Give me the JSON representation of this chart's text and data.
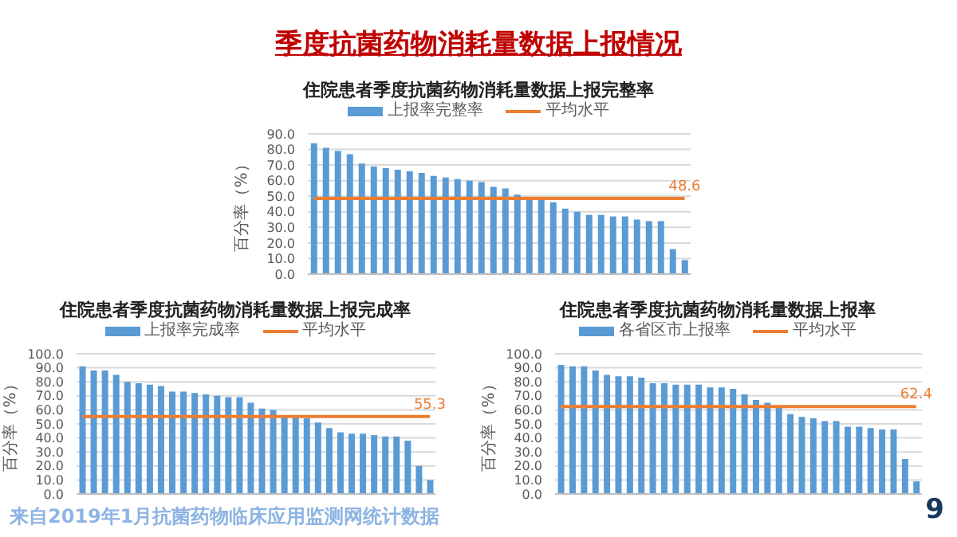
{
  "chart_data": [
    {
      "type": "bar",
      "title": "住院患者季度抗菌药物消耗量数据上报完整率",
      "ylabel": "百分率（%）",
      "annotations": [
        "季度抗菌药物消耗量数据上报情况",
        "来自2019年1月抗菌药物临床应用监测网统计数据",
        "9"
      ],
      "categories": [
        null,
        null,
        null,
        null,
        null,
        null,
        null,
        null,
        null,
        null,
        null,
        null,
        null,
        null,
        null,
        null,
        null,
        null,
        null,
        null,
        null,
        null,
        null,
        null,
        null,
        null,
        null,
        null,
        null,
        null,
        null,
        null
      ],
      "series": [
        {
          "name": "上报率完整率",
          "color": "#5b9bd5",
          "values": [
            84,
            81,
            79,
            77,
            71,
            69,
            68,
            67,
            66,
            65,
            63,
            62,
            61,
            60,
            59,
            56,
            55,
            51,
            48,
            48,
            46,
            42,
            40,
            38,
            38,
            37,
            37,
            35,
            34,
            34,
            16,
            9
          ]
        },
        {
          "type": "line",
          "name": "平均水平",
          "color": "#ed7d31",
          "values": [
            48.6,
            48.6,
            48.6,
            48.6,
            48.6,
            48.6,
            48.6,
            48.6,
            48.6,
            48.6,
            48.6,
            48.6,
            48.6,
            48.6,
            48.6,
            48.6,
            48.6,
            48.6,
            48.6,
            48.6,
            48.6,
            48.6,
            48.6,
            48.6,
            48.6,
            48.6,
            48.6,
            48.6,
            48.6,
            48.6,
            48.6,
            48.6
          ],
          "value_labels": [
            null,
            null,
            null,
            null,
            null,
            null,
            null,
            null,
            null,
            null,
            null,
            null,
            null,
            null,
            null,
            null,
            null,
            null,
            null,
            null,
            null,
            null,
            null,
            null,
            null,
            null,
            null,
            null,
            null,
            null,
            null,
            "48.6"
          ]
        }
      ],
      "ylim": [
        0,
        90
      ],
      "yticks": [
        {
          "value": 0,
          "label": "0.0"
        },
        {
          "value": 10,
          "label": "10.0"
        },
        {
          "value": 20,
          "label": "20.0"
        },
        {
          "value": 30,
          "label": "30.0"
        },
        {
          "value": 40,
          "label": "40.0"
        },
        {
          "value": 50,
          "label": "50.0"
        },
        {
          "value": 60,
          "label": "60.0"
        },
        {
          "value": 70,
          "label": "70.0"
        },
        {
          "value": 80,
          "label": "80.0"
        },
        {
          "value": 90,
          "label": "90.0"
        }
      ],
      "grid": "y",
      "legend": "top",
      "tick_labels": "y",
      "marker": "none"
    },
    {
      "type": "bar",
      "title": "住院患者季度抗菌药物消耗量数据上报完成率",
      "ylabel": "百分率（%）",
      "categories": [
        null,
        null,
        null,
        null,
        null,
        null,
        null,
        null,
        null,
        null,
        null,
        null,
        null,
        null,
        null,
        null,
        null,
        null,
        null,
        null,
        null,
        null,
        null,
        null,
        null,
        null,
        null,
        null,
        null,
        null,
        null,
        null
      ],
      "series": [
        {
          "name": "上报率完成率",
          "color": "#5b9bd5",
          "values": [
            91,
            88,
            88,
            85,
            80,
            79,
            78,
            77,
            73,
            73,
            72,
            71,
            70,
            69,
            69,
            65,
            61,
            60,
            55,
            55,
            54,
            51,
            47,
            44,
            43,
            43,
            42,
            41,
            41,
            38,
            20,
            10
          ]
        },
        {
          "type": "line",
          "name": "平均水平",
          "color": "#ed7d31",
          "values": [
            55.3,
            55.3,
            55.3,
            55.3,
            55.3,
            55.3,
            55.3,
            55.3,
            55.3,
            55.3,
            55.3,
            55.3,
            55.3,
            55.3,
            55.3,
            55.3,
            55.3,
            55.3,
            55.3,
            55.3,
            55.3,
            55.3,
            55.3,
            55.3,
            55.3,
            55.3,
            55.3,
            55.3,
            55.3,
            55.3,
            55.3,
            55.3
          ],
          "value_labels": [
            null,
            null,
            null,
            null,
            null,
            null,
            null,
            null,
            null,
            null,
            null,
            null,
            null,
            null,
            null,
            null,
            null,
            null,
            null,
            null,
            null,
            null,
            null,
            null,
            null,
            null,
            null,
            null,
            null,
            null,
            null,
            "55.3"
          ]
        }
      ],
      "ylim": [
        0,
        100
      ],
      "yticks": [
        {
          "value": 0,
          "label": "0.0"
        },
        {
          "value": 10,
          "label": "10.0"
        },
        {
          "value": 20,
          "label": "20.0"
        },
        {
          "value": 30,
          "label": "30.0"
        },
        {
          "value": 40,
          "label": "40.0"
        },
        {
          "value": 50,
          "label": "50.0"
        },
        {
          "value": 60,
          "label": "60.0"
        },
        {
          "value": 70,
          "label": "70.0"
        },
        {
          "value": 80,
          "label": "80.0"
        },
        {
          "value": 90,
          "label": "90.0"
        },
        {
          "value": 100,
          "label": "100.0"
        }
      ],
      "grid": "y",
      "legend": "top",
      "tick_labels": "y",
      "marker": "none"
    },
    {
      "type": "bar",
      "title": "住院患者季度抗菌药物消耗量数据上报率",
      "ylabel": "百分率（%）",
      "categories": [
        null,
        null,
        null,
        null,
        null,
        null,
        null,
        null,
        null,
        null,
        null,
        null,
        null,
        null,
        null,
        null,
        null,
        null,
        null,
        null,
        null,
        null,
        null,
        null,
        null,
        null,
        null,
        null,
        null,
        null,
        null,
        null
      ],
      "series": [
        {
          "name": "各省区市上报率",
          "color": "#5b9bd5",
          "values": [
            92,
            91,
            91,
            88,
            85,
            84,
            84,
            83,
            79,
            79,
            78,
            78,
            78,
            76,
            76,
            75,
            71,
            67,
            65,
            63,
            57,
            55,
            54,
            52,
            52,
            48,
            48,
            47,
            46,
            46,
            25,
            9
          ]
        },
        {
          "type": "line",
          "name": "平均水平",
          "color": "#ed7d31",
          "values": [
            62.4,
            62.4,
            62.4,
            62.4,
            62.4,
            62.4,
            62.4,
            62.4,
            62.4,
            62.4,
            62.4,
            62.4,
            62.4,
            62.4,
            62.4,
            62.4,
            62.4,
            62.4,
            62.4,
            62.4,
            62.4,
            62.4,
            62.4,
            62.4,
            62.4,
            62.4,
            62.4,
            62.4,
            62.4,
            62.4,
            62.4,
            62.4
          ],
          "value_labels": [
            null,
            null,
            null,
            null,
            null,
            null,
            null,
            null,
            null,
            null,
            null,
            null,
            null,
            null,
            null,
            null,
            null,
            null,
            null,
            null,
            null,
            null,
            null,
            null,
            null,
            null,
            null,
            null,
            null,
            null,
            null,
            "62.4"
          ]
        }
      ],
      "ylim": [
        0,
        100
      ],
      "yticks": [
        {
          "value": 0,
          "label": "0.0"
        },
        {
          "value": 10,
          "label": "10.0"
        },
        {
          "value": 20,
          "label": "20.0"
        },
        {
          "value": 30,
          "label": "30.0"
        },
        {
          "value": 40,
          "label": "40.0"
        },
        {
          "value": 50,
          "label": "50.0"
        },
        {
          "value": 60,
          "label": "60.0"
        },
        {
          "value": 70,
          "label": "70.0"
        },
        {
          "value": 80,
          "label": "80.0"
        },
        {
          "value": 90,
          "label": "90.0"
        },
        {
          "value": 100,
          "label": "100.0"
        }
      ],
      "grid": "y",
      "legend": "top",
      "tick_labels": "y",
      "marker": "none"
    }
  ]
}
